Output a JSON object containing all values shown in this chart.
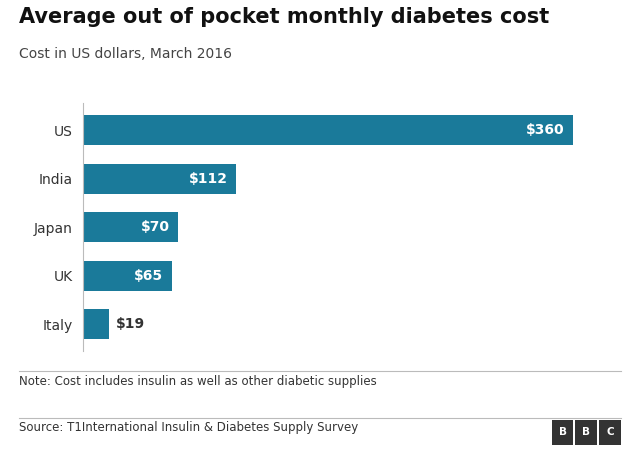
{
  "title": "Average out of pocket monthly diabetes cost",
  "subtitle": "Cost in US dollars, March 2016",
  "categories": [
    "US",
    "India",
    "Japan",
    "UK",
    "Italy"
  ],
  "values": [
    360,
    112,
    70,
    65,
    19
  ],
  "labels": [
    "$360",
    "$112",
    "$70",
    "$65",
    "$19"
  ],
  "bar_color": "#1a7a9a",
  "label_color_inside": "#ffffff",
  "label_color_outside": "#333333",
  "inside_threshold": 50,
  "note": "Note: Cost includes insulin as well as other diabetic supplies",
  "source": "Source: T1International Insulin & Diabetes Supply Survey",
  "title_fontsize": 15,
  "subtitle_fontsize": 10,
  "note_fontsize": 8.5,
  "source_fontsize": 8.5,
  "bar_label_fontsize": 10,
  "tick_fontsize": 10,
  "background_color": "#ffffff",
  "xlim": [
    0,
    395
  ]
}
